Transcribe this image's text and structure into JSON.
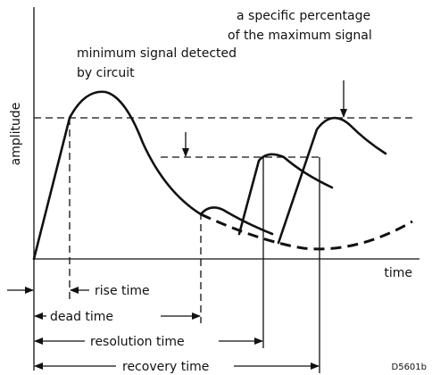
{
  "annotations": {
    "max_signal": [
      "a specific percentage",
      "of the maximum signal"
    ],
    "min_signal": [
      "minimum signal detected",
      "by circuit"
    ]
  },
  "axes": {
    "y_label": "amplitude",
    "x_label": "time"
  },
  "intervals": [
    "rise time",
    "dead time",
    "resolution time",
    "recovery time"
  ],
  "figure_id": "D5601b"
}
